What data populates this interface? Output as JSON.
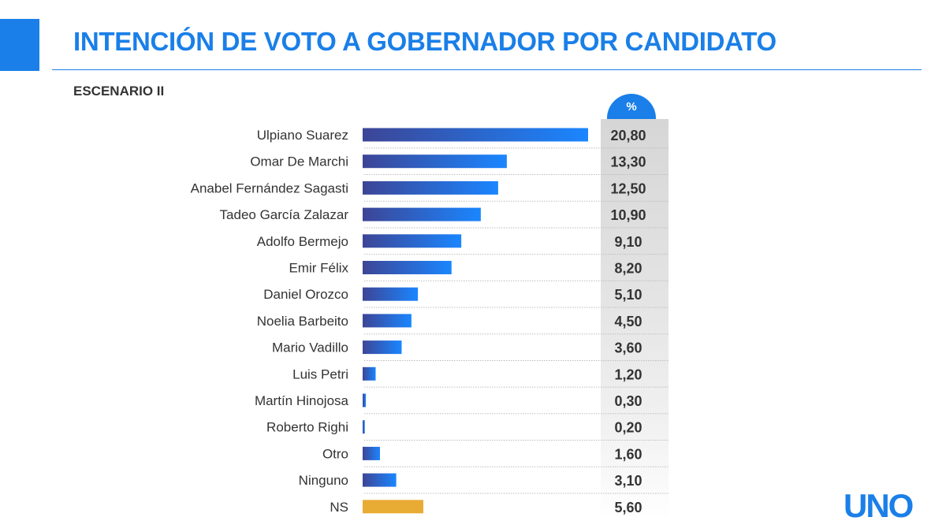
{
  "header": {
    "title": "INTENCIÓN DE VOTO A GOBERNADOR POR CANDIDATO",
    "subtitle": "ESCENARIO II",
    "column_badge": "%"
  },
  "logo_text": "UNO",
  "colors": {
    "brand_blue": "#1a7fe8",
    "bar_gradient_start": "#3d4596",
    "bar_gradient_end": "#1a86ff",
    "highlight_bar": "#e8ab33"
  },
  "chart_data": {
    "type": "bar",
    "orientation": "horizontal",
    "title": "INTENCIÓN DE VOTO A GOBERNADOR POR CANDIDATO",
    "subtitle": "ESCENARIO II",
    "ylabel": "%",
    "categories": [
      "Ulpiano Suarez",
      "Omar De Marchi",
      "Anabel Fernández Sagasti",
      "Tadeo García Zalazar",
      "Adolfo Bermejo",
      "Emir Félix",
      "Daniel Orozco",
      "Noelia Barbeito",
      "Mario Vadillo",
      "Luis Petri",
      "Martín Hinojosa",
      "Roberto Righi",
      "Otro",
      "Ninguno",
      "NS"
    ],
    "values": [
      20.8,
      13.3,
      12.5,
      10.9,
      9.1,
      8.2,
      5.1,
      4.5,
      3.6,
      1.2,
      0.3,
      0.2,
      1.6,
      3.1,
      5.6
    ],
    "value_labels": [
      "20,80",
      "13,30",
      "12,50",
      "10,90",
      "9,10",
      "8,20",
      "5,10",
      "4,50",
      "3,60",
      "1,20",
      "0,30",
      "0,20",
      "1,60",
      "3,10",
      "5,60"
    ],
    "highlighted_category": "NS",
    "xlim": [
      0,
      20.8
    ],
    "grid": false,
    "legend": "none"
  }
}
